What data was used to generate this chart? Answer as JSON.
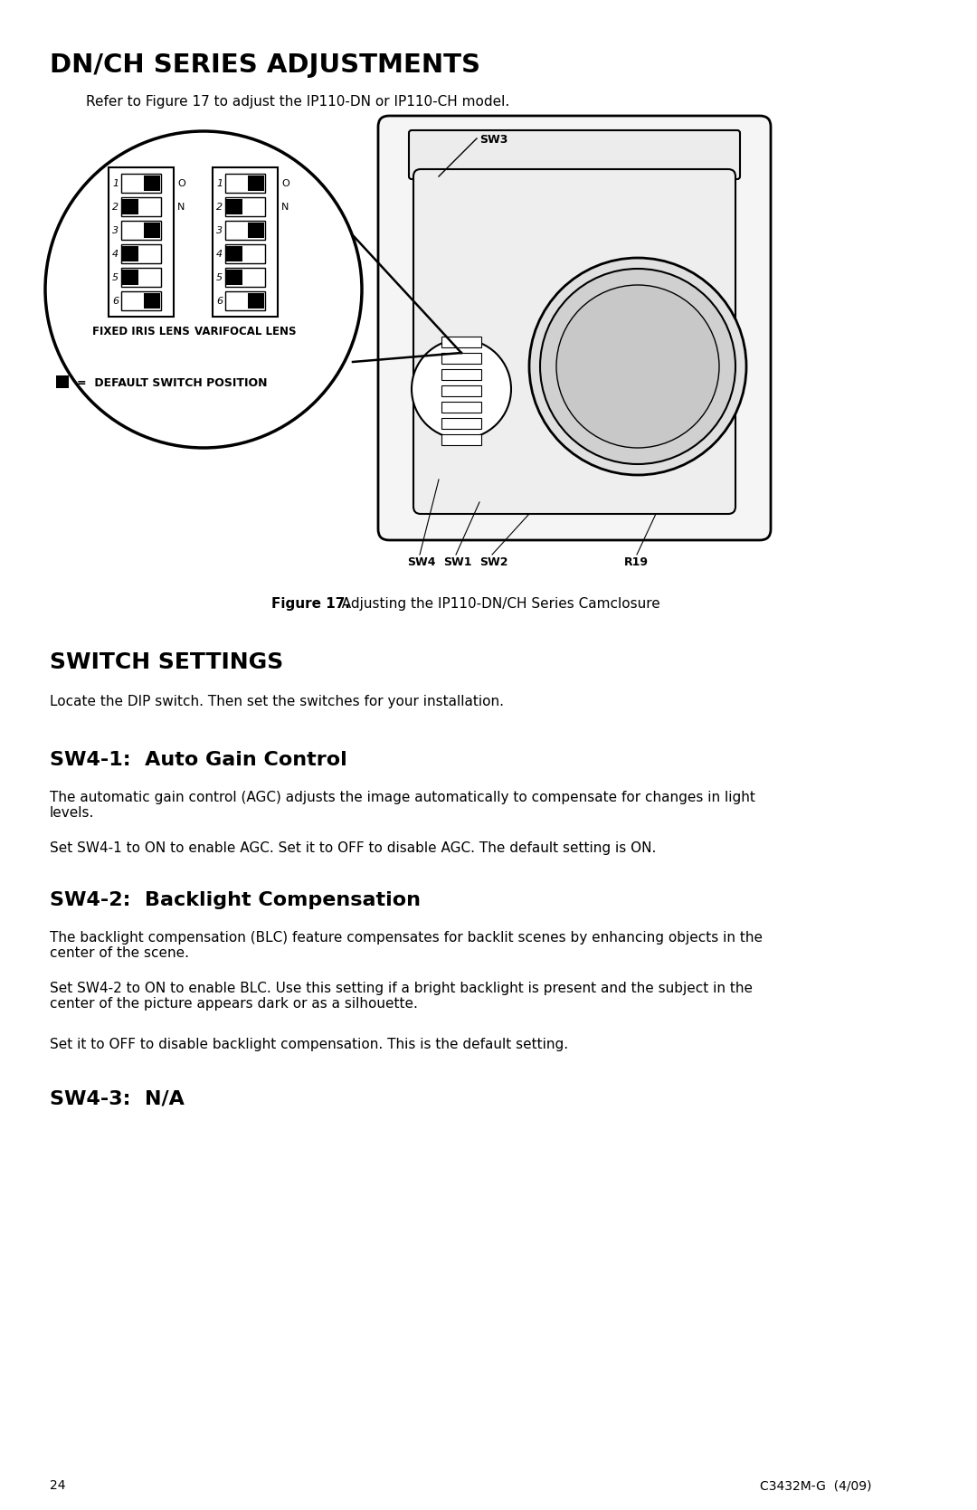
{
  "title": "DN/CH SERIES ADJUSTMENTS",
  "subtitle": "Refer to Figure 17 to adjust the IP110-DN or IP110-CH model.",
  "figure_caption_bold": "Figure 17.",
  "figure_caption_rest": "  Adjusting the IP110-DN/CH Series Camclosure",
  "section1_title": "SWITCH SETTINGS",
  "section1_body": "Locate the DIP switch. Then set the switches for your installation.",
  "section2_title": "SW4-1:  Auto Gain Control",
  "section2_body1": "The automatic gain control (AGC) adjusts the image automatically to compensate for changes in light\nlevels.",
  "section2_body2": "Set SW4-1 to ON to enable AGC. Set it to OFF to disable AGC. The default setting is ON.",
  "section3_title": "SW4-2:  Backlight Compensation",
  "section3_body1": "The backlight compensation (BLC) feature compensates for backlit scenes by enhancing objects in the\ncenter of the scene.",
  "section3_body2": "Set SW4-2 to ON to enable BLC. Use this setting if a bright backlight is present and the subject in the\ncenter of the picture appears dark or as a silhouette.",
  "section3_body3": "Set it to OFF to disable backlight compensation. This is the default setting.",
  "section4_title": "SW4-3:  N/A",
  "legend_text": "=  DEFAULT SWITCH POSITION",
  "fixed_iris_label": "FIXED IRIS LENS",
  "varifocal_label": "VARIFOCAL LENS",
  "sw3_label": "SW3",
  "sw4_label": "SW4",
  "sw1_label": "SW1",
  "sw2_label": "SW2",
  "r19_label": "R19",
  "page_number": "24",
  "page_code": "C3432M-G  (4/09)",
  "background_color": "#ffffff",
  "text_color": "#000000",
  "fixed_switch_states": [
    true,
    false,
    true,
    false,
    false,
    true
  ],
  "varifocal_switch_states": [
    true,
    false,
    true,
    false,
    false,
    true
  ],
  "panel_left_labels": [
    "1",
    "2",
    "3",
    "4",
    "5",
    "6"
  ]
}
